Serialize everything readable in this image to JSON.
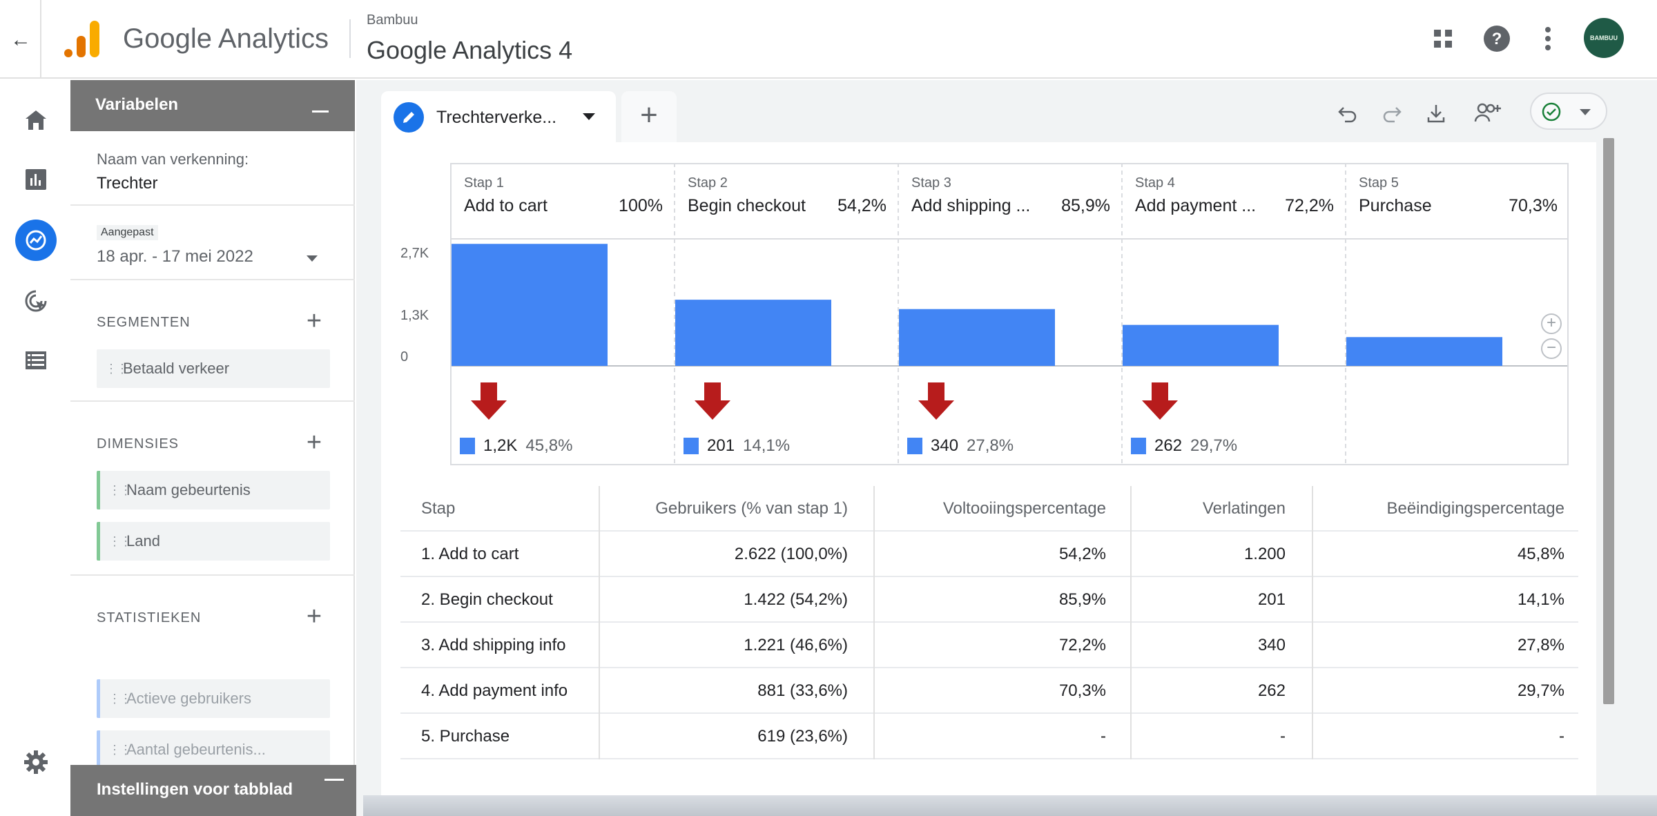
{
  "header": {
    "product": "Google Analytics",
    "account": "Bambuu",
    "property": "Google Analytics 4",
    "avatar_text": "BAMBUU"
  },
  "icons": {
    "back": "arrow-back-icon",
    "apps": "apps-grid-icon",
    "help": "help-icon",
    "more": "more-vert-icon",
    "nav": [
      "home-icon",
      "reports-icon",
      "explore-icon",
      "advertising-icon",
      "configure-icon",
      "admin-gear-icon"
    ],
    "toolbar": [
      "undo-icon",
      "redo-icon",
      "download-icon",
      "share-icon",
      "status-check-icon"
    ]
  },
  "variables": {
    "title": "Variabelen",
    "exploration_label": "Naam van verkenning:",
    "exploration_name": "Trechter",
    "date_tag": "Aangepast",
    "date_range": "18 apr. - 17 mei 2022",
    "segments_title": "SEGMENTEN",
    "segments": [
      "Betaald verkeer"
    ],
    "dimensions_title": "DIMENSIES",
    "dimensions": [
      "Naam gebeurtenis",
      "Land"
    ],
    "metrics_title": "STATISTIEKEN",
    "metrics": [
      "Actieve gebruikers",
      "Aantal gebeurtenis..."
    ],
    "tab_settings": "Instellingen voor tabblad"
  },
  "tab": {
    "label": "Trechterverke...",
    "add": "+"
  },
  "chart_data": {
    "type": "bar",
    "categories": [
      "Add to cart",
      "Begin checkout",
      "Add shipping ...",
      "Add payment ...",
      "Purchase"
    ],
    "step_labels": [
      "Stap 1",
      "Stap 2",
      "Stap 3",
      "Stap 4",
      "Stap 5"
    ],
    "completion_pct_labels": [
      "100%",
      "54,2%",
      "85,9%",
      "72,2%",
      "70,3%"
    ],
    "values": [
      2622,
      1422,
      1221,
      881,
      619
    ],
    "ylim": [
      0,
      2700
    ],
    "yticks": [
      "2,7K",
      "1,3K",
      "0"
    ],
    "dropoffs": [
      {
        "count": "1,2K",
        "pct": "45,8%"
      },
      {
        "count": "201",
        "pct": "14,1%"
      },
      {
        "count": "340",
        "pct": "27,8%"
      },
      {
        "count": "262",
        "pct": "29,7%"
      }
    ],
    "bar_color": "#4285f4",
    "arrow_color": "#b71c1c"
  },
  "table": {
    "headers": [
      "Stap",
      "Gebruikers (% van stap 1)",
      "Voltooiingspercentage",
      "Verlatingen",
      "Beëindigingspercentage"
    ],
    "rows": [
      [
        "1. Add to cart",
        "2.622 (100,0%)",
        "54,2%",
        "1.200",
        "45,8%"
      ],
      [
        "2. Begin checkout",
        "1.422 (54,2%)",
        "85,9%",
        "201",
        "14,1%"
      ],
      [
        "3. Add shipping info",
        "1.221 (46,6%)",
        "72,2%",
        "340",
        "27,8%"
      ],
      [
        "4. Add payment info",
        "881 (33,6%)",
        "70,3%",
        "262",
        "29,7%"
      ],
      [
        "5. Purchase",
        "619 (23,6%)",
        "-",
        "-",
        "-"
      ]
    ]
  }
}
